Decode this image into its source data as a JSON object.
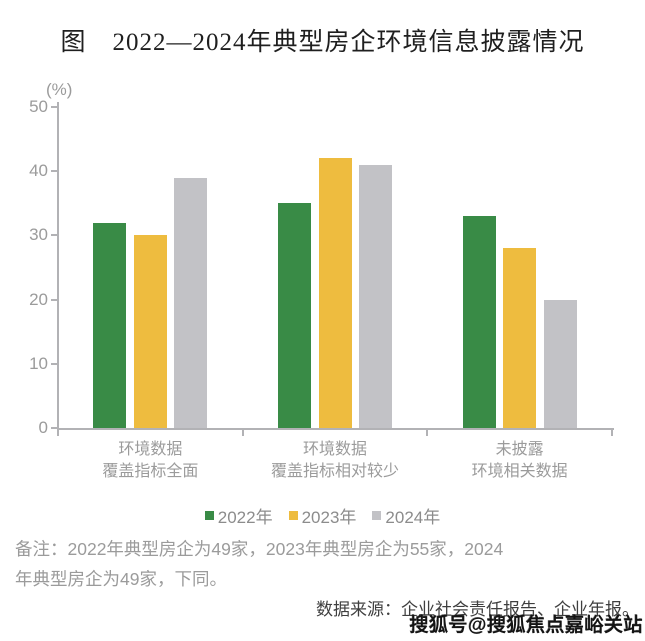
{
  "title": "图　2022—2024年典型房企环境信息披露情况",
  "chart_data": {
    "type": "bar",
    "title": "图　2022—2024年典型房企环境信息披露情况",
    "unit_label": "(%)",
    "ylim": [
      0,
      50
    ],
    "yticks": [
      0,
      10,
      20,
      30,
      40,
      50
    ],
    "grid": false,
    "legend_position": "bottom",
    "categories": [
      [
        "环境数据",
        "覆盖指标全面"
      ],
      [
        "环境数据",
        "覆盖指标相对较少"
      ],
      [
        "未披露",
        "环境相关数据"
      ]
    ],
    "series": [
      {
        "name": "2022年",
        "color": "#398b46",
        "values": [
          32,
          35,
          33
        ]
      },
      {
        "name": "2023年",
        "color": "#eebc3f",
        "values": [
          30,
          42,
          28
        ]
      },
      {
        "name": "2024年",
        "color": "#c2c2c6",
        "values": [
          39,
          41,
          20
        ]
      }
    ]
  },
  "colors": {
    "axis": "#b2b2b5",
    "tick_text": "#9b9b9b",
    "title_text": "#1f1f1f",
    "note_text": "#9b9b9b",
    "source_text": "#3f3f3f"
  },
  "notes": {
    "lines": [
      "备注：2022年典型房企为49家，2023年典型房企为55家，2024",
      "年典型房企为49家，下同。"
    ]
  },
  "source": "数据来源：企业社会责任报告、企业年报。",
  "watermark": "搜狐号@搜狐焦点嘉峪关站"
}
